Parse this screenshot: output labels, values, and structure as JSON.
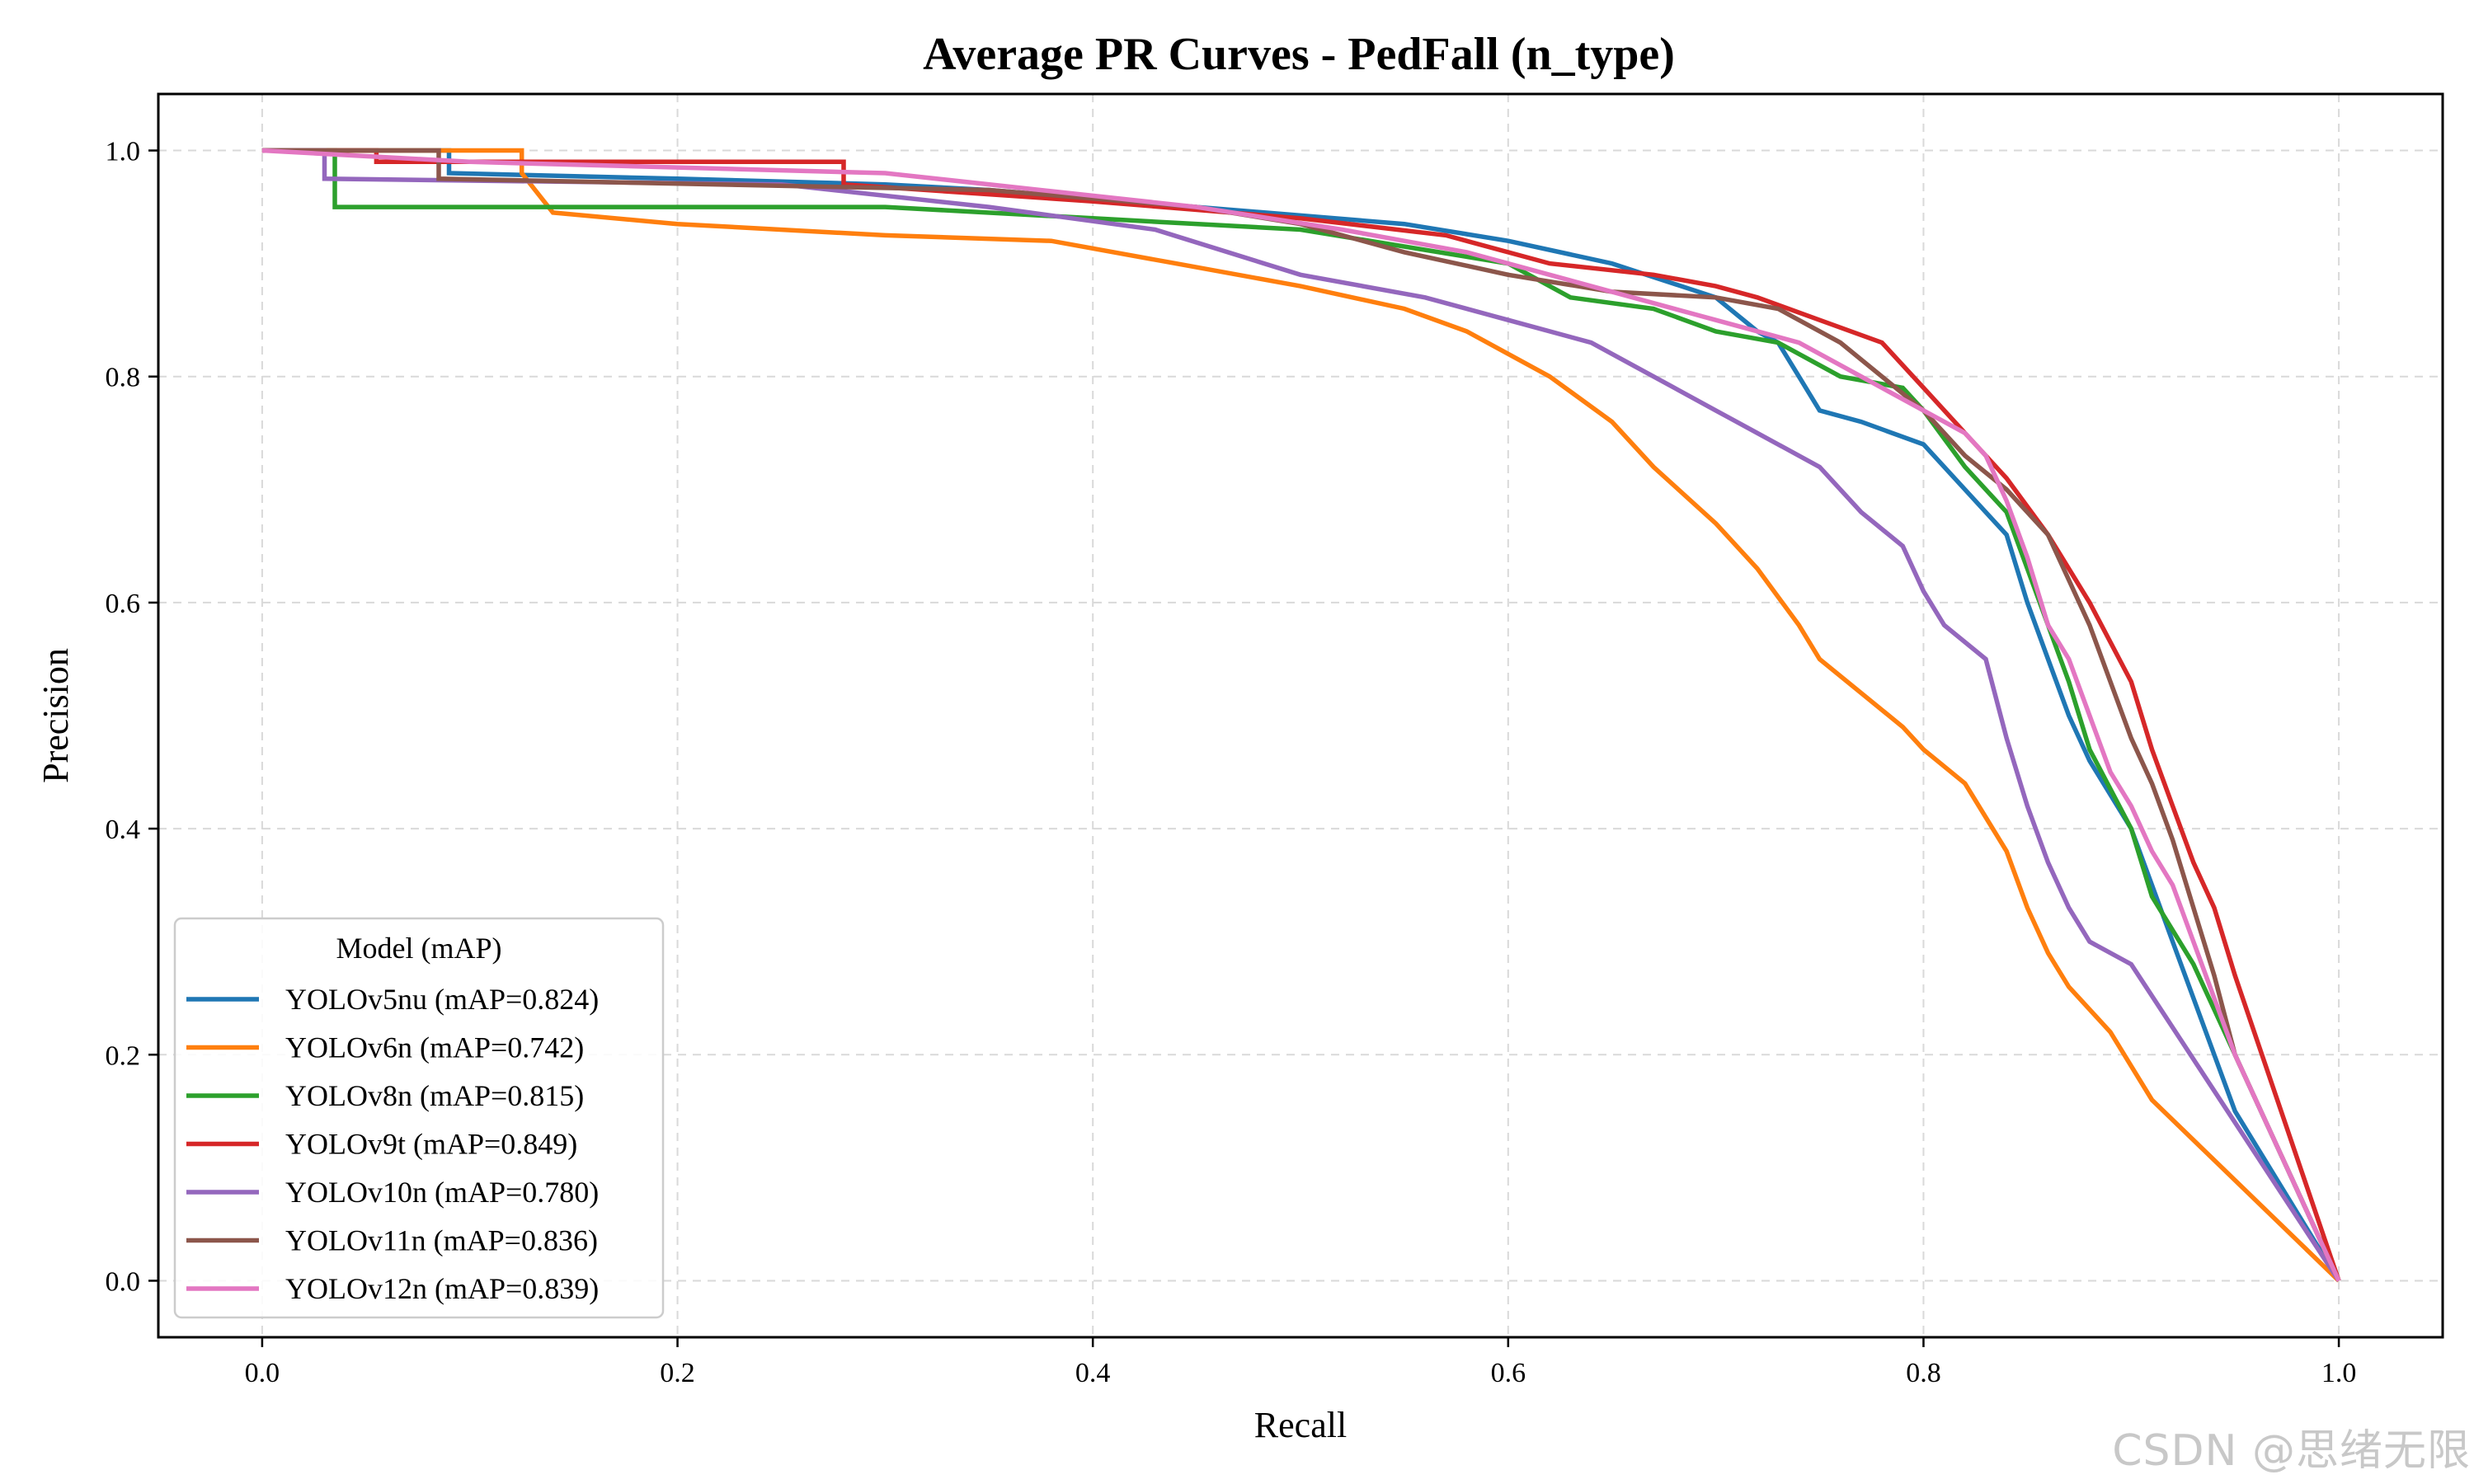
{
  "chart_data": {
    "type": "line",
    "title": "Average PR Curves - PedFall (n_type)",
    "xlabel": "Recall",
    "ylabel": "Precision",
    "xlim": [
      -0.05,
      1.05
    ],
    "ylim": [
      -0.05,
      1.05
    ],
    "xticks": [
      0.0,
      0.2,
      0.4,
      0.6,
      0.8,
      1.0
    ],
    "xtick_labels": [
      "0.0",
      "0.2",
      "0.4",
      "0.6",
      "0.8",
      "1.0"
    ],
    "yticks": [
      0.0,
      0.2,
      0.4,
      0.6,
      0.8,
      1.0
    ],
    "ytick_labels": [
      "0.0",
      "0.2",
      "0.4",
      "0.6",
      "0.8",
      "1.0"
    ],
    "grid": true,
    "legend_title": "Model (mAP)",
    "legend_position": "lower-left",
    "series": [
      {
        "name": "YOLOv5nu (mAP=0.824)",
        "color": "#1f77b4",
        "x": [
          0.0,
          0.09,
          0.09,
          0.2,
          0.3,
          0.35,
          0.45,
          0.55,
          0.6,
          0.65,
          0.7,
          0.72,
          0.73,
          0.74,
          0.75,
          0.77,
          0.8,
          0.82,
          0.84,
          0.85,
          0.86,
          0.87,
          0.88,
          0.89,
          0.9,
          0.91,
          0.92,
          0.93,
          0.94,
          0.95,
          1.0
        ],
        "y": [
          1.0,
          1.0,
          0.98,
          0.975,
          0.97,
          0.965,
          0.95,
          0.935,
          0.92,
          0.9,
          0.87,
          0.84,
          0.83,
          0.8,
          0.77,
          0.76,
          0.74,
          0.7,
          0.66,
          0.6,
          0.55,
          0.5,
          0.46,
          0.43,
          0.4,
          0.35,
          0.3,
          0.25,
          0.2,
          0.15,
          0.0
        ]
      },
      {
        "name": "YOLOv6n (mAP=0.742)",
        "color": "#ff7f0e",
        "x": [
          0.0,
          0.125,
          0.125,
          0.14,
          0.2,
          0.3,
          0.38,
          0.44,
          0.5,
          0.55,
          0.58,
          0.62,
          0.65,
          0.67,
          0.7,
          0.72,
          0.74,
          0.75,
          0.77,
          0.79,
          0.8,
          0.82,
          0.84,
          0.85,
          0.86,
          0.87,
          0.89,
          0.9,
          0.91,
          1.0
        ],
        "y": [
          1.0,
          1.0,
          0.98,
          0.945,
          0.935,
          0.925,
          0.92,
          0.9,
          0.88,
          0.86,
          0.84,
          0.8,
          0.76,
          0.72,
          0.67,
          0.63,
          0.58,
          0.55,
          0.52,
          0.49,
          0.47,
          0.44,
          0.38,
          0.33,
          0.29,
          0.26,
          0.22,
          0.19,
          0.16,
          0.0
        ]
      },
      {
        "name": "YOLOv8n (mAP=0.815)",
        "color": "#2ca02c",
        "x": [
          0.0,
          0.035,
          0.035,
          0.3,
          0.4,
          0.5,
          0.6,
          0.63,
          0.67,
          0.7,
          0.73,
          0.76,
          0.79,
          0.8,
          0.82,
          0.84,
          0.85,
          0.86,
          0.87,
          0.88,
          0.9,
          0.91,
          0.93,
          0.95,
          1.0
        ],
        "y": [
          1.0,
          1.0,
          0.95,
          0.95,
          0.94,
          0.93,
          0.9,
          0.87,
          0.86,
          0.84,
          0.83,
          0.8,
          0.79,
          0.77,
          0.72,
          0.68,
          0.63,
          0.58,
          0.53,
          0.47,
          0.4,
          0.34,
          0.28,
          0.2,
          0.0
        ]
      },
      {
        "name": "YOLOv9t (mAP=0.849)",
        "color": "#d62728",
        "x": [
          0.0,
          0.055,
          0.055,
          0.28,
          0.28,
          0.4,
          0.5,
          0.57,
          0.62,
          0.67,
          0.7,
          0.72,
          0.75,
          0.78,
          0.8,
          0.82,
          0.84,
          0.86,
          0.88,
          0.9,
          0.91,
          0.92,
          0.93,
          0.94,
          0.95,
          1.0
        ],
        "y": [
          1.0,
          1.0,
          0.99,
          0.99,
          0.97,
          0.955,
          0.94,
          0.925,
          0.9,
          0.89,
          0.88,
          0.87,
          0.85,
          0.83,
          0.79,
          0.75,
          0.71,
          0.66,
          0.6,
          0.53,
          0.47,
          0.42,
          0.37,
          0.33,
          0.27,
          0.0
        ]
      },
      {
        "name": "YOLOv10n (mAP=0.780)",
        "color": "#9467bd",
        "x": [
          0.0,
          0.03,
          0.03,
          0.25,
          0.35,
          0.43,
          0.5,
          0.56,
          0.6,
          0.64,
          0.67,
          0.7,
          0.72,
          0.75,
          0.77,
          0.79,
          0.8,
          0.81,
          0.83,
          0.84,
          0.85,
          0.86,
          0.87,
          0.88,
          0.9,
          1.0
        ],
        "y": [
          1.0,
          1.0,
          0.975,
          0.97,
          0.95,
          0.93,
          0.89,
          0.87,
          0.85,
          0.83,
          0.8,
          0.77,
          0.75,
          0.72,
          0.68,
          0.65,
          0.61,
          0.58,
          0.55,
          0.48,
          0.42,
          0.37,
          0.33,
          0.3,
          0.28,
          0.0
        ]
      },
      {
        "name": "YOLOv11n (mAP=0.836)",
        "color": "#8c564b",
        "x": [
          0.0,
          0.085,
          0.085,
          0.35,
          0.45,
          0.5,
          0.55,
          0.6,
          0.65,
          0.7,
          0.73,
          0.76,
          0.78,
          0.8,
          0.82,
          0.84,
          0.86,
          0.87,
          0.88,
          0.89,
          0.9,
          0.91,
          0.92,
          0.93,
          0.94,
          0.95,
          1.0
        ],
        "y": [
          1.0,
          1.0,
          0.975,
          0.965,
          0.95,
          0.935,
          0.91,
          0.89,
          0.875,
          0.87,
          0.86,
          0.83,
          0.8,
          0.77,
          0.73,
          0.7,
          0.66,
          0.62,
          0.58,
          0.53,
          0.48,
          0.44,
          0.39,
          0.33,
          0.27,
          0.2,
          0.0
        ]
      },
      {
        "name": "YOLOv12n (mAP=0.839)",
        "color": "#e377c2",
        "x": [
          0.0,
          0.1,
          0.3,
          0.45,
          0.52,
          0.58,
          0.62,
          0.66,
          0.7,
          0.74,
          0.77,
          0.8,
          0.82,
          0.83,
          0.84,
          0.85,
          0.86,
          0.87,
          0.88,
          0.89,
          0.9,
          0.91,
          0.92,
          0.93,
          0.94,
          0.95,
          1.0
        ],
        "y": [
          1.0,
          0.99,
          0.98,
          0.95,
          0.93,
          0.91,
          0.89,
          0.87,
          0.85,
          0.83,
          0.8,
          0.77,
          0.75,
          0.73,
          0.69,
          0.64,
          0.58,
          0.55,
          0.5,
          0.45,
          0.42,
          0.38,
          0.35,
          0.3,
          0.25,
          0.2,
          0.0
        ]
      }
    ]
  },
  "watermark": "CSDN @思绪无限"
}
